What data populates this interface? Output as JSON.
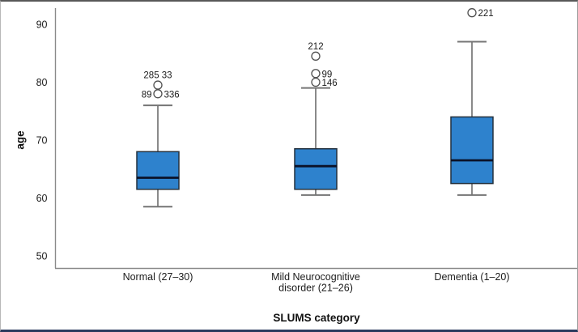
{
  "figure": {
    "ylabel": "age",
    "xlabel": "SLUMS category"
  },
  "chart_data": {
    "type": "boxplot",
    "title": "",
    "xlabel": "SLUMS category",
    "ylabel": "age",
    "ylim": [
      48,
      93
    ],
    "yticks": [
      50,
      60,
      70,
      80,
      90
    ],
    "grid": false,
    "legend": "none",
    "categories": [
      "Normal (27–30)",
      "Mild Neurocognitive\ndisorder (21–26)",
      "Dementia (1–20)"
    ],
    "series": [
      {
        "category": "Normal (27–30)",
        "whisker_low": 58.5,
        "q1": 61.5,
        "median": 63.5,
        "q3": 68,
        "whisker_high": 76,
        "outliers": [
          {
            "age": 79.5,
            "labels": [
              {
                "text": "285 33",
                "pos": "above"
              }
            ]
          },
          {
            "age": 78,
            "labels": [
              {
                "text": "89",
                "pos": "left"
              },
              {
                "text": "336",
                "pos": "right"
              }
            ]
          }
        ]
      },
      {
        "category": "Mild Neurocognitive disorder (21–26)",
        "whisker_low": 60.5,
        "q1": 61.5,
        "median": 65.5,
        "q3": 68.5,
        "whisker_high": 79,
        "outliers": [
          {
            "age": 84.5,
            "labels": [
              {
                "text": "212",
                "pos": "above"
              }
            ]
          },
          {
            "age": 81.5,
            "labels": [
              {
                "text": "99",
                "pos": "right"
              }
            ]
          },
          {
            "age": 80,
            "labels": [
              {
                "text": "146",
                "pos": "right"
              }
            ]
          }
        ]
      },
      {
        "category": "Dementia (1–20)",
        "whisker_low": 60.5,
        "q1": 62.5,
        "median": 66.5,
        "q3": 74,
        "whisker_high": 87,
        "outliers": [
          {
            "age": 92,
            "labels": [
              {
                "text": "221",
                "pos": "right"
              }
            ]
          }
        ]
      }
    ],
    "colors": {
      "box_fill": "#2e82cd",
      "box_stroke": "#23303d",
      "median_line": "#0b1228",
      "whisker": "#757575",
      "outlier_stroke": "#4f4f4f",
      "outlier_fill": "#ffffff",
      "axis_line": "#8a8a8a",
      "text": "#1c1c1c"
    }
  }
}
